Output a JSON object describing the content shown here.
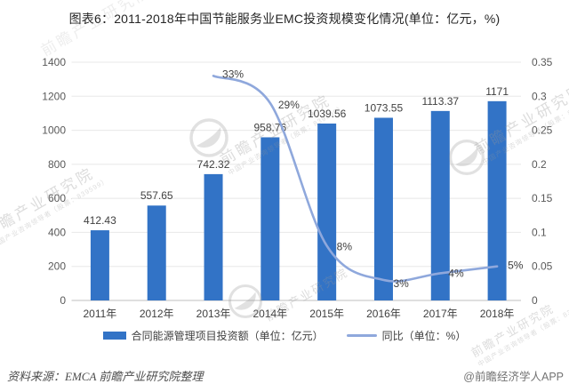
{
  "title": "图表6：2011-2018年中国节能服务业EMC投资规模变化情况(单位：亿元，%)",
  "chart_data": {
    "type": "bar",
    "title": "图表6：2011-2018年中国节能服务业EMC投资规模变化情况(单位：亿元，%)",
    "categories": [
      "2011年",
      "2012年",
      "2013年",
      "2014年",
      "2015年",
      "2016年",
      "2017年",
      "2018年"
    ],
    "series": [
      {
        "name": "合同能源管理项目投资额（单位：亿元）",
        "kind": "bar",
        "axis": "left",
        "color": "#3273C6",
        "values": [
          412.43,
          557.65,
          742.32,
          958.76,
          1039.56,
          1073.55,
          1113.37,
          1171
        ],
        "labels": [
          "412.43",
          "557.65",
          "742.32",
          "958.76",
          "1039.56",
          "1073.55",
          "1113.37",
          "1171"
        ]
      },
      {
        "name": "同比（单位：%）",
        "kind": "line",
        "axis": "right",
        "color": "#8FA8DC",
        "values": [
          null,
          null,
          0.33,
          0.29,
          0.08,
          0.03,
          0.04,
          0.05
        ],
        "labels": [
          null,
          null,
          "33%",
          "29%",
          "8%",
          "3%",
          "4%",
          "5%"
        ]
      }
    ],
    "left_axis": {
      "min": 0,
      "max": 1400,
      "step": 200,
      "tick_labels": [
        "0",
        "200",
        "400",
        "600",
        "800",
        "1000",
        "1200",
        "1400"
      ]
    },
    "right_axis": {
      "min": 0,
      "max": 0.35,
      "step": 0.05,
      "tick_labels": [
        "0",
        "0.05",
        "0.1",
        "0.15",
        "0.2",
        "0.25",
        "0.3",
        "0.35"
      ]
    },
    "grid": true,
    "legend_position": "bottom"
  },
  "legend": {
    "items": [
      {
        "label": "合同能源管理项目投资额（单位：亿元）",
        "swatch": "bar",
        "color": "#3273C6"
      },
      {
        "label": "同比（单位：%）",
        "swatch": "line",
        "color": "#8FA8DC"
      }
    ]
  },
  "watermark": {
    "brand": "前瞻产业研究院",
    "tagline": "中国产业咨询领导者（股票：839599）"
  },
  "footer": {
    "source": "资料来源：EMCA 前瞻产业研究院整理",
    "credit": "@前瞻经济学人APP"
  }
}
